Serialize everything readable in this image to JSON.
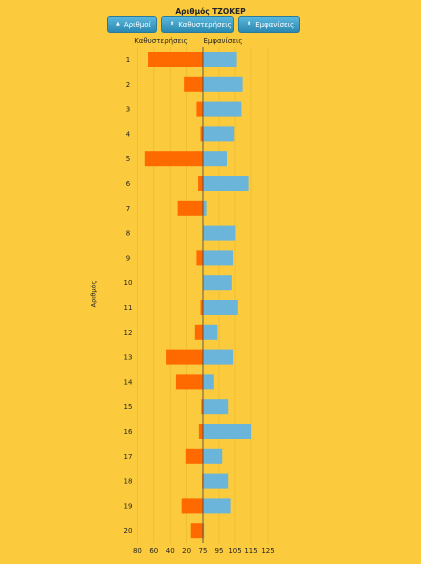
{
  "title": "Αριθμός ΤΖΟΚΕΡ",
  "buttons": {
    "numbers": {
      "label": "Αριθμοί",
      "icon": "sort-up-icon"
    },
    "delays": {
      "label": "Καθυστερήσεις",
      "icon": "sort-updown-icon"
    },
    "appearances": {
      "label": "Εμφανίσεις",
      "icon": "sort-updown-icon"
    }
  },
  "colors": {
    "background": "#FBCB3D",
    "delays": "#FF6A00",
    "appearances": "#6CB5DA",
    "button": "#2B88B0"
  },
  "chart_data": {
    "type": "bar",
    "orientation": "horizontal",
    "title": "Αριθμός ΤΖΟΚΕΡ",
    "ylabel": "Αριθμός",
    "categories": [
      "1",
      "2",
      "3",
      "4",
      "5",
      "6",
      "7",
      "8",
      "9",
      "10",
      "11",
      "12",
      "13",
      "14",
      "15",
      "16",
      "17",
      "18",
      "19",
      "20"
    ],
    "left_panel": {
      "header": "Καθυστερήσεις",
      "ticks": [
        "80",
        "60",
        "40",
        "20",
        "0"
      ],
      "values": [
        67,
        23,
        8,
        3,
        71,
        6,
        31,
        0,
        8,
        0,
        3,
        10,
        45,
        33,
        2,
        5,
        21,
        1,
        26,
        15
      ]
    },
    "right_panel": {
      "header": "Εμφανίσεις",
      "ticks": [
        "75",
        "95",
        "105",
        "115",
        "125"
      ],
      "values": [
        103,
        108,
        107,
        101,
        95,
        113,
        78,
        102,
        100,
        99,
        104,
        87,
        100,
        84,
        96,
        115,
        91,
        96,
        98,
        76
      ]
    },
    "grid": true
  }
}
